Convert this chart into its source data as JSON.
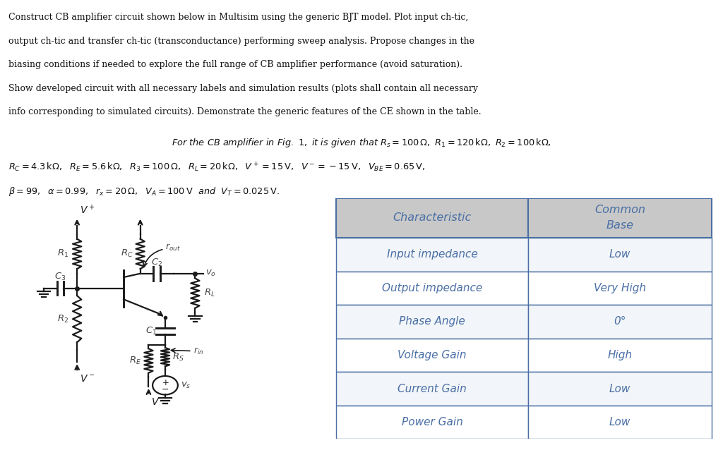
{
  "paragraph1_lines": [
    "Construct CB amplifier circuit shown below in Multisim using the generic BJT model. Plot input ch-tic,",
    "output ch-tic and transfer ch-tic (transconductance) performing sweep analysis. Propose changes in the",
    "biasing conditions if needed to explore the full range of CB amplifier performance (avoid saturation).",
    "Show developed circuit with all necessary labels and simulation results (plots shall contain all necessary",
    "info corresponding to simulated circuits). Demonstrate the generic features of the CE shown in the table."
  ],
  "table_headers": [
    "Characteristic",
    "Common\nBase"
  ],
  "table_rows": [
    [
      "Input impedance",
      "Low"
    ],
    [
      "Output impedance",
      "Very High"
    ],
    [
      "Phase Angle",
      "0°"
    ],
    [
      "Voltage Gain",
      "High"
    ],
    [
      "Current Gain",
      "Low"
    ],
    [
      "Power Gain",
      "Low"
    ]
  ],
  "header_bg_color": "#c8c8c8",
  "table_text_color": "#4a6fa5",
  "table_border_color": "#4a6fa5",
  "bg_color": "#ffffff",
  "circuit_color": "#1a1a1a",
  "circuit_label_color": "#444444",
  "text_color": "#111111"
}
